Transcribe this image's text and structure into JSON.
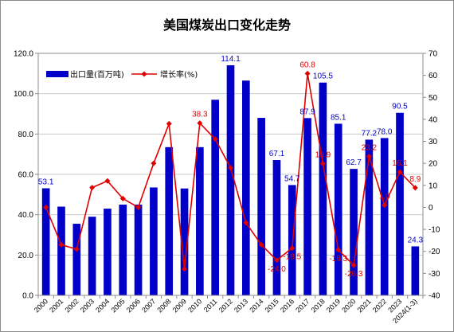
{
  "chart_data": {
    "type": "bar",
    "title": "美国煤炭出口变化走势",
    "categories": [
      "2000",
      "2001",
      "2002",
      "2003",
      "2004",
      "2005",
      "2006",
      "2007",
      "2008",
      "2009",
      "2010",
      "2011",
      "2012",
      "2013",
      "2014",
      "2015",
      "2016",
      "2017",
      "2018",
      "2019",
      "2020",
      "2021",
      "2022",
      "2023",
      "2024(1-3)"
    ],
    "y_left": {
      "min": 0,
      "max": 120,
      "step": 20,
      "tick_labels": [
        "0.0",
        "20.0",
        "40.0",
        "60.0",
        "80.0",
        "100.0",
        "120.0"
      ]
    },
    "y_right": {
      "min": -40,
      "max": 70,
      "step": 10,
      "tick_labels": [
        "-40",
        "-30",
        "-20",
        "-10",
        "0",
        "10",
        "20",
        "30",
        "40",
        "50",
        "60",
        "70"
      ]
    },
    "grid": true,
    "legend_position": "top-left",
    "series": [
      {
        "name": "出口量(百万吨)",
        "kind": "bar",
        "axis": "left",
        "color": "#0000c8",
        "values": [
          53.1,
          44.0,
          35.5,
          39.0,
          43.0,
          45.0,
          45.0,
          53.5,
          73.5,
          53.0,
          73.5,
          97.0,
          114.1,
          106.5,
          88.0,
          67.1,
          54.7,
          87.9,
          105.5,
          85.1,
          62.7,
          77.2,
          78.0,
          90.5,
          24.3
        ],
        "labels": [
          {
            "i": 0,
            "text": "53.1"
          },
          {
            "i": 12,
            "text": "114.1"
          },
          {
            "i": 15,
            "text": "67.1"
          },
          {
            "i": 16,
            "text": "54.7"
          },
          {
            "i": 17,
            "text": "87.9"
          },
          {
            "i": 18,
            "text": "105.5"
          },
          {
            "i": 19,
            "text": "85.1"
          },
          {
            "i": 20,
            "text": "62.7"
          },
          {
            "i": 21,
            "text": "77.2"
          },
          {
            "i": 22,
            "text": "78.0"
          },
          {
            "i": 23,
            "text": "90.5"
          },
          {
            "i": 24,
            "text": "24.3"
          }
        ]
      },
      {
        "name": "增长率(%)",
        "kind": "line",
        "axis": "right",
        "color": "#e00000",
        "values": [
          0.0,
          -17.0,
          -19.0,
          9.0,
          12.0,
          4.0,
          0.0,
          20.0,
          38.0,
          -28.0,
          38.3,
          31.0,
          18.0,
          -7.0,
          -17.0,
          -24.0,
          -18.5,
          60.8,
          19.9,
          -19.3,
          -26.3,
          23.2,
          1.0,
          16.1,
          8.9
        ],
        "labels": [
          {
            "i": 10,
            "text": "38.3"
          },
          {
            "i": 15,
            "text": "-24.0"
          },
          {
            "i": 16,
            "text": "-18.5"
          },
          {
            "i": 17,
            "text": "60.8"
          },
          {
            "i": 18,
            "text": "19.9"
          },
          {
            "i": 19,
            "text": "-19.3"
          },
          {
            "i": 20,
            "text": "-26.3"
          },
          {
            "i": 21,
            "text": "23.2"
          },
          {
            "i": 22,
            "text": "1.0"
          },
          {
            "i": 23,
            "text": "16.1"
          },
          {
            "i": 24,
            "text": "8.9"
          }
        ]
      }
    ]
  }
}
